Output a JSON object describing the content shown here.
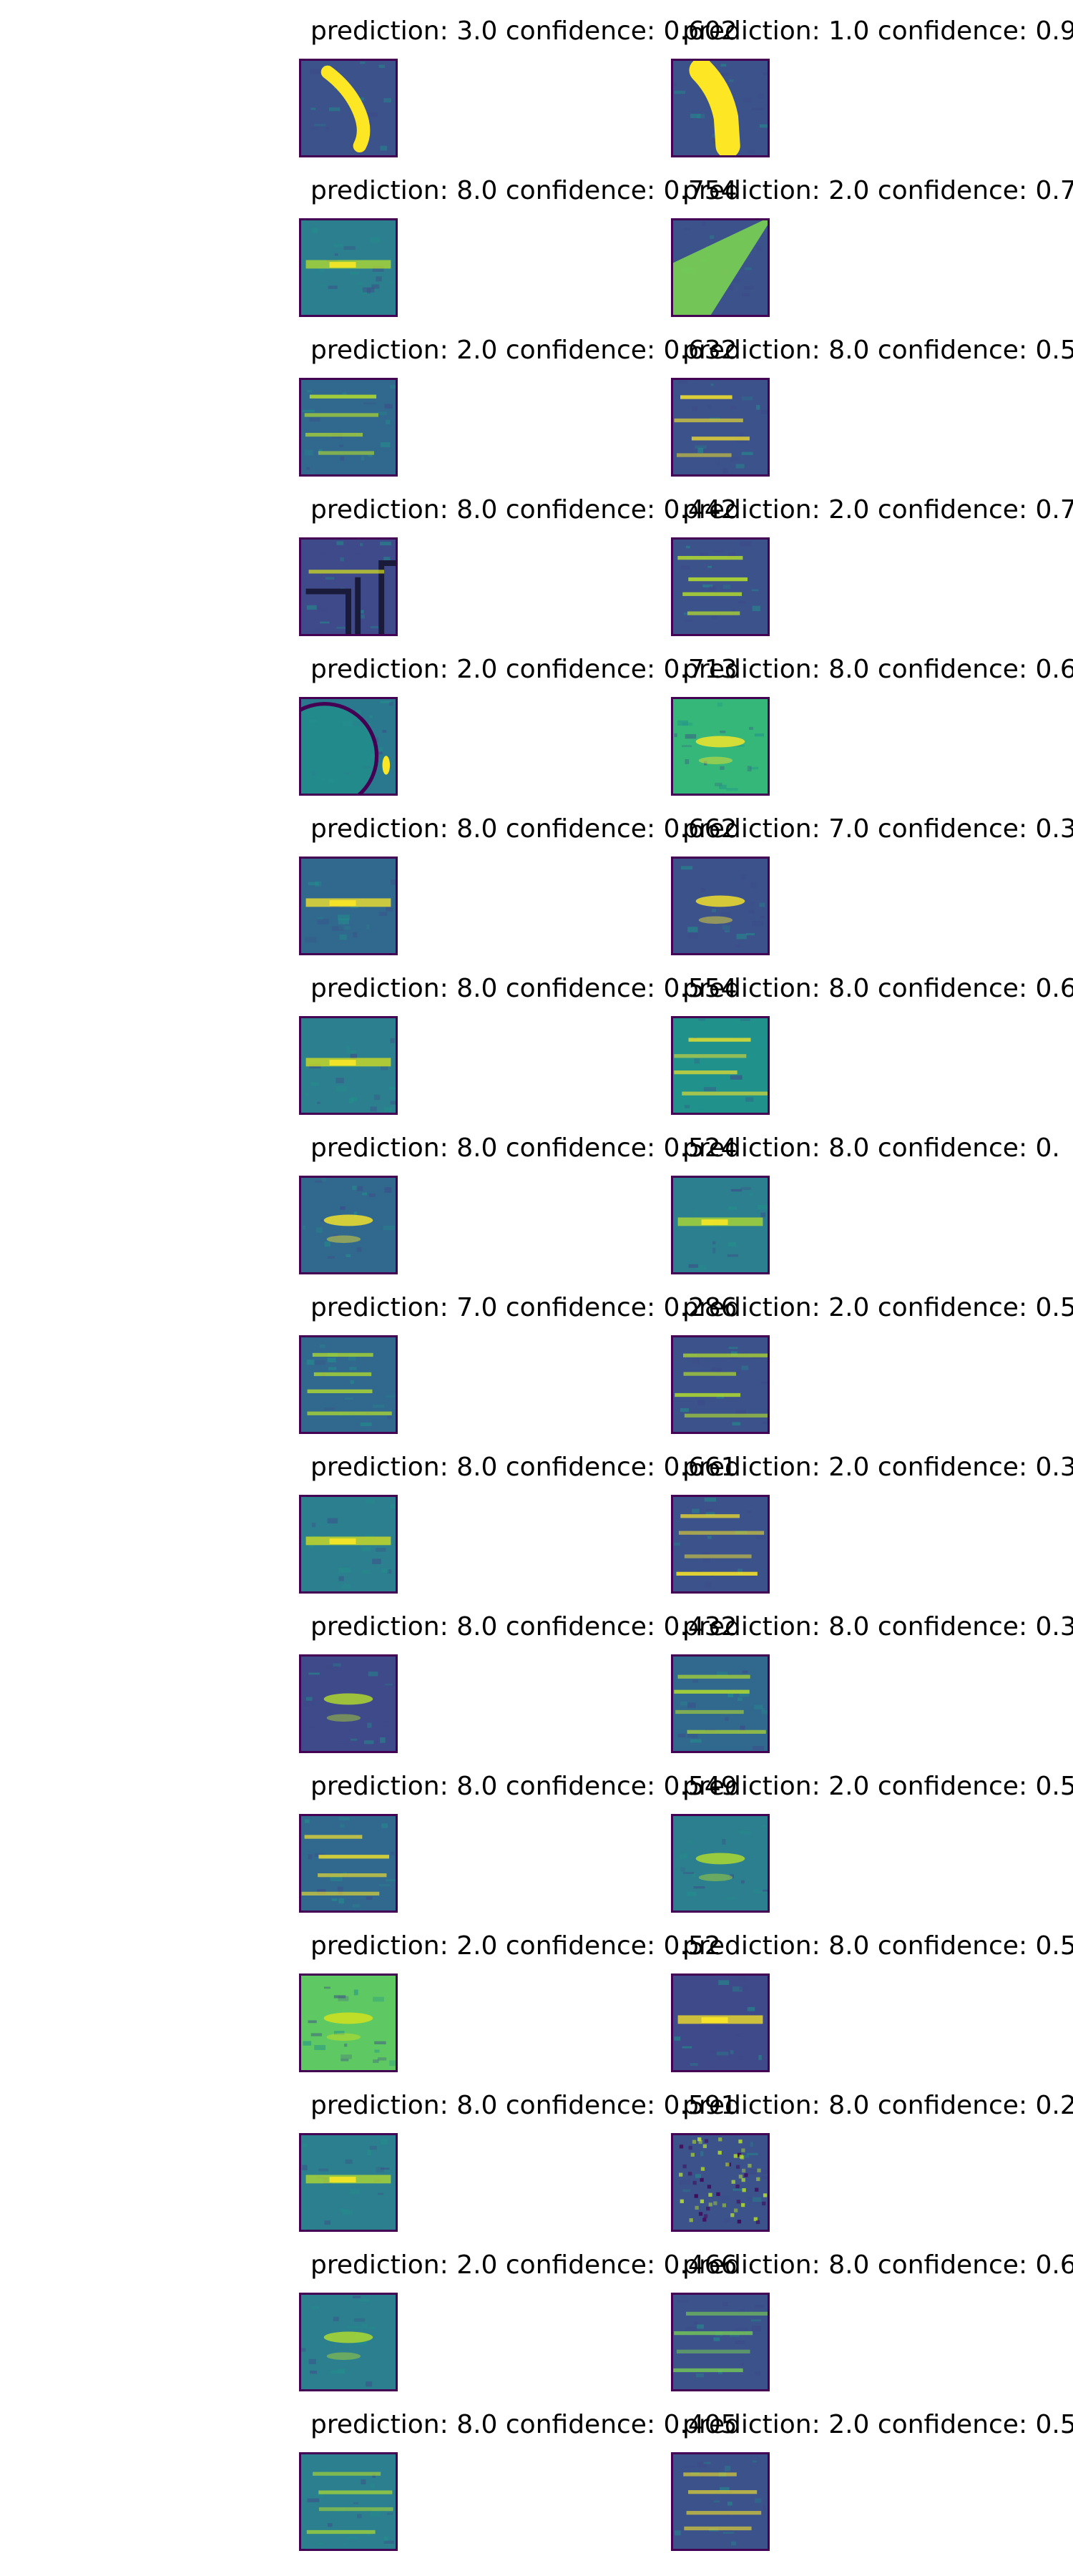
{
  "figure": {
    "panels": [
      {
        "title": "prediction: 3.0 confidence: 0.602",
        "colors": [
          "#3b528b",
          "#fde725"
        ],
        "kind": "stroke"
      },
      {
        "title": "prediction: 1.0 confidence: 0.9",
        "colors": [
          "#3b528b",
          "#fde725"
        ],
        "kind": "stroke_thick"
      },
      {
        "title": "prediction: 8.0 confidence: 0.754",
        "colors": [
          "#2c7f8e",
          "#b5de2b"
        ],
        "kind": "band"
      },
      {
        "title": "prediction: 2.0 confidence: 0.7",
        "colors": [
          "#3b528b",
          "#7ad151"
        ],
        "kind": "diagonal"
      },
      {
        "title": "prediction: 2.0 confidence: 0.632",
        "colors": [
          "#31688e",
          "#b5de2b"
        ],
        "kind": "lines"
      },
      {
        "title": "prediction: 8.0 confidence: 0.5",
        "colors": [
          "#3b528b",
          "#fde725"
        ],
        "kind": "lines"
      },
      {
        "title": "prediction: 8.0 confidence: 0.442",
        "colors": [
          "#3e4a89",
          "#d8e219"
        ],
        "kind": "frame"
      },
      {
        "title": "prediction: 2.0 confidence: 0.7",
        "colors": [
          "#3b528b",
          "#b5de2b"
        ],
        "kind": "lines"
      },
      {
        "title": "prediction: 2.0 confidence: 0.713",
        "colors": [
          "#2a788e",
          "#fde725"
        ],
        "kind": "circle"
      },
      {
        "title": "prediction: 8.0 confidence: 0.6",
        "colors": [
          "#35b779",
          "#fde725"
        ],
        "kind": "spot"
      },
      {
        "title": "prediction: 8.0 confidence: 0.662",
        "colors": [
          "#31688e",
          "#fde725"
        ],
        "kind": "band"
      },
      {
        "title": "prediction: 7.0 confidence: 0.3",
        "colors": [
          "#3b528b",
          "#fde725"
        ],
        "kind": "spot"
      },
      {
        "title": "prediction: 8.0 confidence: 0.554",
        "colors": [
          "#2c7f8e",
          "#d8e219"
        ],
        "kind": "band"
      },
      {
        "title": "prediction: 8.0 confidence: 0.6",
        "colors": [
          "#21918c",
          "#fde725"
        ],
        "kind": "lines"
      },
      {
        "title": "prediction: 8.0 confidence: 0.524",
        "colors": [
          "#31688e",
          "#fde725"
        ],
        "kind": "spot"
      },
      {
        "title": "prediction: 8.0 confidence: 0.",
        "colors": [
          "#2c7f8e",
          "#b5de2b"
        ],
        "kind": "band"
      },
      {
        "title": "prediction: 7.0 confidence: 0.286",
        "colors": [
          "#31688e",
          "#b5de2b"
        ],
        "kind": "lines"
      },
      {
        "title": "prediction: 2.0 confidence: 0.5",
        "colors": [
          "#3b528b",
          "#b5de2b"
        ],
        "kind": "lines"
      },
      {
        "title": "prediction: 8.0 confidence: 0.661",
        "colors": [
          "#2c7f8e",
          "#d8e219"
        ],
        "kind": "band"
      },
      {
        "title": "prediction: 2.0 confidence: 0.3",
        "colors": [
          "#3b528b",
          "#fde725"
        ],
        "kind": "lines"
      },
      {
        "title": "prediction: 8.0 confidence: 0.432",
        "colors": [
          "#3e4a89",
          "#b5de2b"
        ],
        "kind": "spot"
      },
      {
        "title": "prediction: 8.0 confidence: 0.3",
        "colors": [
          "#31688e",
          "#b5de2b"
        ],
        "kind": "lines"
      },
      {
        "title": "prediction: 8.0 confidence: 0.549",
        "colors": [
          "#31688e",
          "#fde725"
        ],
        "kind": "lines"
      },
      {
        "title": "prediction: 2.0 confidence: 0.5",
        "colors": [
          "#2c7f8e",
          "#b5de2b"
        ],
        "kind": "spot"
      },
      {
        "title": "prediction: 2.0 confidence: 0.52",
        "colors": [
          "#5ec962",
          "#d8e219"
        ],
        "kind": "spot"
      },
      {
        "title": "prediction: 8.0 confidence: 0.5",
        "colors": [
          "#3e4a89",
          "#fde725"
        ],
        "kind": "band"
      },
      {
        "title": "prediction: 8.0 confidence: 0.591",
        "colors": [
          "#2c7f8e",
          "#b5de2b"
        ],
        "kind": "band"
      },
      {
        "title": "prediction: 8.0 confidence: 0.2",
        "colors": [
          "#3b528b",
          "#b5de2b"
        ],
        "kind": "noise"
      },
      {
        "title": "prediction: 2.0 confidence: 0.466",
        "colors": [
          "#2c7f8e",
          "#b5de2b"
        ],
        "kind": "spot"
      },
      {
        "title": "prediction: 8.0 confidence: 0.6",
        "colors": [
          "#3b528b",
          "#7ad151"
        ],
        "kind": "lines"
      },
      {
        "title": "prediction: 8.0 confidence: 0.405",
        "colors": [
          "#2c7f8e",
          "#b5de2b"
        ],
        "kind": "lines"
      },
      {
        "title": "prediction: 2.0 confidence: 0.5",
        "colors": [
          "#3b528b",
          "#fde725"
        ],
        "kind": "lines"
      }
    ]
  }
}
